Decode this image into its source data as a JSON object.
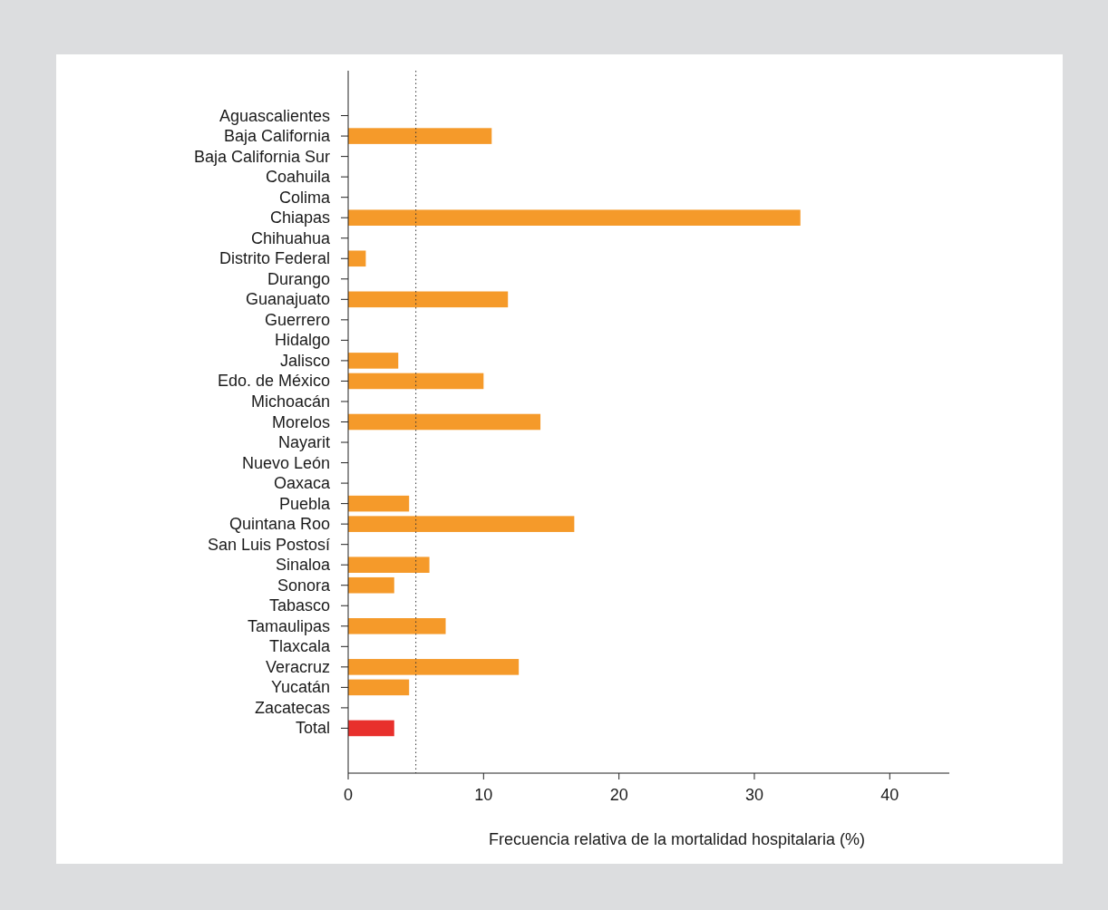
{
  "chart_data": {
    "type": "bar",
    "orientation": "horizontal",
    "xlabel": "Frecuencia relativa de la mortalidad hospitalaria (%)",
    "categories": [
      "Aguascalientes",
      "Baja California",
      "Baja California Sur",
      "Coahuila",
      "Colima",
      "Chiapas",
      "Chihuahua",
      "Distrito Federal",
      "Durango",
      "Guanajuato",
      "Guerrero",
      "Hidalgo",
      "Jalisco",
      "Edo. de México",
      "Michoacán",
      "Morelos",
      "Nayarit",
      "Nuevo León",
      "Oaxaca",
      "Puebla",
      "Quintana Roo",
      "San Luis Postosí",
      "Sinaloa",
      "Sonora",
      "Tabasco",
      "Tamaulipas",
      "Tlaxcala",
      "Veracruz",
      "Yucatán",
      "Zacatecas",
      "Total"
    ],
    "values": [
      null,
      10.6,
      null,
      null,
      null,
      33.4,
      null,
      1.3,
      null,
      11.8,
      null,
      null,
      3.7,
      10.0,
      null,
      14.2,
      null,
      null,
      null,
      4.5,
      16.7,
      null,
      6.0,
      3.4,
      null,
      7.2,
      null,
      12.6,
      4.5,
      null,
      3.4
    ],
    "colors": [
      null,
      "#f59a2a",
      null,
      null,
      null,
      "#f59a2a",
      null,
      "#f59a2a",
      null,
      "#f59a2a",
      null,
      null,
      "#f59a2a",
      "#f59a2a",
      null,
      "#f59a2a",
      null,
      null,
      null,
      "#f59a2a",
      "#f59a2a",
      null,
      "#f59a2a",
      "#f59a2a",
      null,
      "#f59a2a",
      null,
      "#f59a2a",
      "#f59a2a",
      null,
      "#e8302c"
    ],
    "xlim": [
      0,
      44.4
    ],
    "xticks": [
      0,
      10,
      20,
      30,
      40
    ],
    "grid": false,
    "ref_lines": [
      {
        "axis": "x",
        "value": 5,
        "line_style": "dotted",
        "color": "#333333"
      }
    ]
  }
}
